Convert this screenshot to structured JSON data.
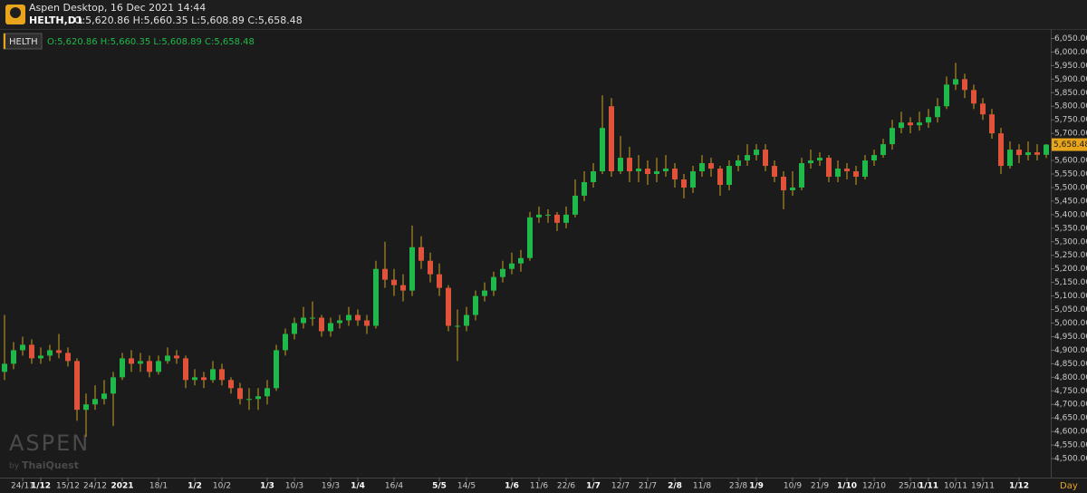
{
  "header": {
    "app": "Aspen Desktop, 16 Dec 2021 14:44",
    "symbol": "HELTH,D1",
    "ohlc": "O:5,620.86 H:5,660.35 L:5,608.89 C:5,658.48"
  },
  "watermark": {
    "brand": "ASPEN",
    "by": "by",
    "company": "ThaiQuest"
  },
  "chart_data": {
    "type": "candlestick",
    "legend": {
      "name": "HELTH",
      "ohlc": "O:5,620.86 H:5,660.35 L:5,608.89 C:5,658.48"
    },
    "up_color": "#1fb84a",
    "down_color": "#e0533a",
    "wick_color": "#c9a227",
    "last_price_label": "5,658.48",
    "x_unit": "Day",
    "xlim": [
      -0.5,
      115.5
    ],
    "ylim": [
      4430,
      6085
    ],
    "xticks": [
      {
        "value": 2,
        "label": "24/11"
      },
      {
        "value": 4,
        "label": "1/12",
        "bold": true
      },
      {
        "value": 7,
        "label": "15/12"
      },
      {
        "value": 10,
        "label": "24/12"
      },
      {
        "value": 13,
        "label": "2021",
        "bold": true
      },
      {
        "value": 17,
        "label": "18/1"
      },
      {
        "value": 21,
        "label": "1/2",
        "bold": true
      },
      {
        "value": 24,
        "label": "10/2"
      },
      {
        "value": 29,
        "label": "1/3",
        "bold": true
      },
      {
        "value": 32,
        "label": "10/3"
      },
      {
        "value": 36,
        "label": "19/3"
      },
      {
        "value": 39,
        "label": "1/4",
        "bold": true
      },
      {
        "value": 43,
        "label": "16/4"
      },
      {
        "value": 48,
        "label": "5/5",
        "bold": true
      },
      {
        "value": 51,
        "label": "14/5"
      },
      {
        "value": 56,
        "label": "1/6",
        "bold": true
      },
      {
        "value": 59,
        "label": "11/6"
      },
      {
        "value": 62,
        "label": "22/6"
      },
      {
        "value": 65,
        "label": "1/7",
        "bold": true
      },
      {
        "value": 68,
        "label": "12/7"
      },
      {
        "value": 71,
        "label": "21/7"
      },
      {
        "value": 74,
        "label": "2/8",
        "bold": true
      },
      {
        "value": 77,
        "label": "11/8"
      },
      {
        "value": 81,
        "label": "23/8"
      },
      {
        "value": 83,
        "label": "1/9",
        "bold": true
      },
      {
        "value": 87,
        "label": "10/9"
      },
      {
        "value": 90,
        "label": "21/9"
      },
      {
        "value": 93,
        "label": "1/10",
        "bold": true
      },
      {
        "value": 96,
        "label": "12/10"
      },
      {
        "value": 100,
        "label": "25/10"
      },
      {
        "value": 102,
        "label": "1/11",
        "bold": true
      },
      {
        "value": 105,
        "label": "10/11"
      },
      {
        "value": 108,
        "label": "19/11"
      },
      {
        "value": 112,
        "label": "1/12",
        "bold": true
      }
    ],
    "yticks": [
      {
        "value": 4500,
        "label": "4,500.00"
      },
      {
        "value": 4550,
        "label": "4,550.00"
      },
      {
        "value": 4600,
        "label": "4,600.00"
      },
      {
        "value": 4650,
        "label": "4,650.00"
      },
      {
        "value": 4700,
        "label": "4,700.00"
      },
      {
        "value": 4750,
        "label": "4,750.00"
      },
      {
        "value": 4800,
        "label": "4,800.00"
      },
      {
        "value": 4850,
        "label": "4,850.00"
      },
      {
        "value": 4900,
        "label": "4,900.00"
      },
      {
        "value": 4950,
        "label": "4,950.00"
      },
      {
        "value": 5000,
        "label": "5,000.00"
      },
      {
        "value": 5050,
        "label": "5,050.00"
      },
      {
        "value": 5100,
        "label": "5,100.00"
      },
      {
        "value": 5150,
        "label": "5,150.00"
      },
      {
        "value": 5200,
        "label": "5,200.00"
      },
      {
        "value": 5250,
        "label": "5,250.00"
      },
      {
        "value": 5300,
        "label": "5,300.00"
      },
      {
        "value": 5350,
        "label": "5,350.00"
      },
      {
        "value": 5400,
        "label": "5,400.00"
      },
      {
        "value": 5450,
        "label": "5,450.00"
      },
      {
        "value": 5500,
        "label": "5,500.00"
      },
      {
        "value": 5550,
        "label": "5,550.00"
      },
      {
        "value": 5600,
        "label": "5,600.00"
      },
      {
        "value": 5650,
        "label": "5,650.00"
      },
      {
        "value": 5700,
        "label": "5,700.00"
      },
      {
        "value": 5750,
        "label": "5,750.00"
      },
      {
        "value": 5800,
        "label": "5,800.00"
      },
      {
        "value": 5850,
        "label": "5,850.00"
      },
      {
        "value": 5900,
        "label": "5,900.00"
      },
      {
        "value": 5950,
        "label": "5,950.00"
      },
      {
        "value": 6000,
        "label": "6,000.00"
      },
      {
        "value": 6050,
        "label": "6,050.00"
      }
    ],
    "ohlc": [
      [
        4820,
        5030,
        4790,
        4850
      ],
      [
        4850,
        4930,
        4830,
        4900
      ],
      [
        4900,
        4950,
        4880,
        4920
      ],
      [
        4920,
        4940,
        4850,
        4870
      ],
      [
        4870,
        4910,
        4850,
        4880
      ],
      [
        4880,
        4920,
        4860,
        4900
      ],
      [
        4900,
        4960,
        4870,
        4890
      ],
      [
        4890,
        4910,
        4840,
        4860
      ],
      [
        4860,
        4870,
        4640,
        4680
      ],
      [
        4680,
        4740,
        4580,
        4700
      ],
      [
        4700,
        4770,
        4680,
        4720
      ],
      [
        4720,
        4790,
        4700,
        4740
      ],
      [
        4740,
        4820,
        4620,
        4800
      ],
      [
        4800,
        4890,
        4790,
        4870
      ],
      [
        4870,
        4900,
        4820,
        4850
      ],
      [
        4850,
        4890,
        4820,
        4860
      ],
      [
        4860,
        4880,
        4800,
        4820
      ],
      [
        4820,
        4880,
        4810,
        4860
      ],
      [
        4860,
        4910,
        4850,
        4880
      ],
      [
        4880,
        4900,
        4850,
        4870
      ],
      [
        4870,
        4880,
        4760,
        4790
      ],
      [
        4790,
        4830,
        4770,
        4800
      ],
      [
        4800,
        4820,
        4760,
        4790
      ],
      [
        4790,
        4860,
        4780,
        4830
      ],
      [
        4830,
        4850,
        4770,
        4790
      ],
      [
        4790,
        4800,
        4740,
        4760
      ],
      [
        4760,
        4780,
        4700,
        4720
      ],
      [
        4720,
        4760,
        4680,
        4720
      ],
      [
        4720,
        4760,
        4680,
        4730
      ],
      [
        4730,
        4790,
        4700,
        4760
      ],
      [
        4760,
        4920,
        4750,
        4900
      ],
      [
        4900,
        4980,
        4880,
        4960
      ],
      [
        4960,
        5020,
        4940,
        5000
      ],
      [
        5000,
        5060,
        4980,
        5020
      ],
      [
        5020,
        5080,
        4990,
        5020
      ],
      [
        5020,
        5030,
        4950,
        4970
      ],
      [
        4970,
        5020,
        4950,
        5000
      ],
      [
        5000,
        5030,
        4980,
        5010
      ],
      [
        5010,
        5060,
        4990,
        5030
      ],
      [
        5030,
        5050,
        4990,
        5010
      ],
      [
        5010,
        5030,
        4960,
        4990
      ],
      [
        4990,
        5230,
        4980,
        5200
      ],
      [
        5200,
        5300,
        5130,
        5160
      ],
      [
        5160,
        5200,
        5100,
        5140
      ],
      [
        5140,
        5180,
        5080,
        5120
      ],
      [
        5120,
        5360,
        5100,
        5280
      ],
      [
        5280,
        5320,
        5200,
        5230
      ],
      [
        5230,
        5260,
        5150,
        5180
      ],
      [
        5180,
        5220,
        5100,
        5130
      ],
      [
        5130,
        5140,
        4970,
        4990
      ],
      [
        4990,
        5050,
        4860,
        4990
      ],
      [
        4990,
        5060,
        4970,
        5030
      ],
      [
        5030,
        5120,
        5010,
        5100
      ],
      [
        5100,
        5150,
        5080,
        5120
      ],
      [
        5120,
        5190,
        5100,
        5170
      ],
      [
        5170,
        5230,
        5150,
        5200
      ],
      [
        5200,
        5260,
        5180,
        5220
      ],
      [
        5220,
        5270,
        5190,
        5240
      ],
      [
        5240,
        5410,
        5230,
        5390
      ],
      [
        5390,
        5430,
        5370,
        5400
      ],
      [
        5400,
        5420,
        5370,
        5400
      ],
      [
        5400,
        5410,
        5340,
        5370
      ],
      [
        5370,
        5430,
        5350,
        5400
      ],
      [
        5400,
        5530,
        5390,
        5470
      ],
      [
        5470,
        5560,
        5450,
        5520
      ],
      [
        5520,
        5590,
        5500,
        5560
      ],
      [
        5560,
        5840,
        5550,
        5720
      ],
      [
        5800,
        5830,
        5540,
        5560
      ],
      [
        5560,
        5690,
        5550,
        5610
      ],
      [
        5610,
        5650,
        5520,
        5560
      ],
      [
        5560,
        5620,
        5520,
        5570
      ],
      [
        5570,
        5600,
        5510,
        5550
      ],
      [
        5550,
        5610,
        5520,
        5560
      ],
      [
        5560,
        5620,
        5540,
        5570
      ],
      [
        5570,
        5590,
        5500,
        5530
      ],
      [
        5530,
        5550,
        5460,
        5500
      ],
      [
        5500,
        5580,
        5480,
        5560
      ],
      [
        5560,
        5620,
        5540,
        5590
      ],
      [
        5590,
        5610,
        5540,
        5570
      ],
      [
        5570,
        5580,
        5470,
        5510
      ],
      [
        5510,
        5600,
        5490,
        5580
      ],
      [
        5580,
        5620,
        5560,
        5600
      ],
      [
        5600,
        5660,
        5580,
        5620
      ],
      [
        5620,
        5660,
        5600,
        5640
      ],
      [
        5640,
        5660,
        5560,
        5580
      ],
      [
        5580,
        5600,
        5520,
        5540
      ],
      [
        5540,
        5560,
        5420,
        5490
      ],
      [
        5490,
        5560,
        5470,
        5500
      ],
      [
        5500,
        5610,
        5490,
        5590
      ],
      [
        5590,
        5640,
        5570,
        5600
      ],
      [
        5600,
        5630,
        5580,
        5610
      ],
      [
        5610,
        5620,
        5520,
        5540
      ],
      [
        5540,
        5600,
        5520,
        5570
      ],
      [
        5570,
        5590,
        5530,
        5560
      ],
      [
        5560,
        5580,
        5510,
        5540
      ],
      [
        5540,
        5620,
        5530,
        5600
      ],
      [
        5600,
        5640,
        5580,
        5620
      ],
      [
        5620,
        5680,
        5610,
        5660
      ],
      [
        5660,
        5750,
        5640,
        5720
      ],
      [
        5720,
        5780,
        5700,
        5740
      ],
      [
        5740,
        5760,
        5700,
        5730
      ],
      [
        5730,
        5780,
        5710,
        5740
      ],
      [
        5740,
        5790,
        5720,
        5760
      ],
      [
        5760,
        5830,
        5740,
        5800
      ],
      [
        5800,
        5910,
        5790,
        5880
      ],
      [
        5880,
        5960,
        5860,
        5900
      ],
      [
        5900,
        5920,
        5830,
        5860
      ],
      [
        5860,
        5880,
        5790,
        5810
      ],
      [
        5810,
        5830,
        5750,
        5770
      ],
      [
        5770,
        5790,
        5680,
        5700
      ],
      [
        5700,
        5720,
        5550,
        5580
      ],
      [
        5580,
        5670,
        5570,
        5640
      ],
      [
        5640,
        5660,
        5590,
        5620
      ],
      [
        5620,
        5670,
        5600,
        5630
      ],
      [
        5630,
        5660,
        5600,
        5620.86
      ],
      [
        5620.86,
        5660.35,
        5608.89,
        5658.48
      ]
    ]
  }
}
